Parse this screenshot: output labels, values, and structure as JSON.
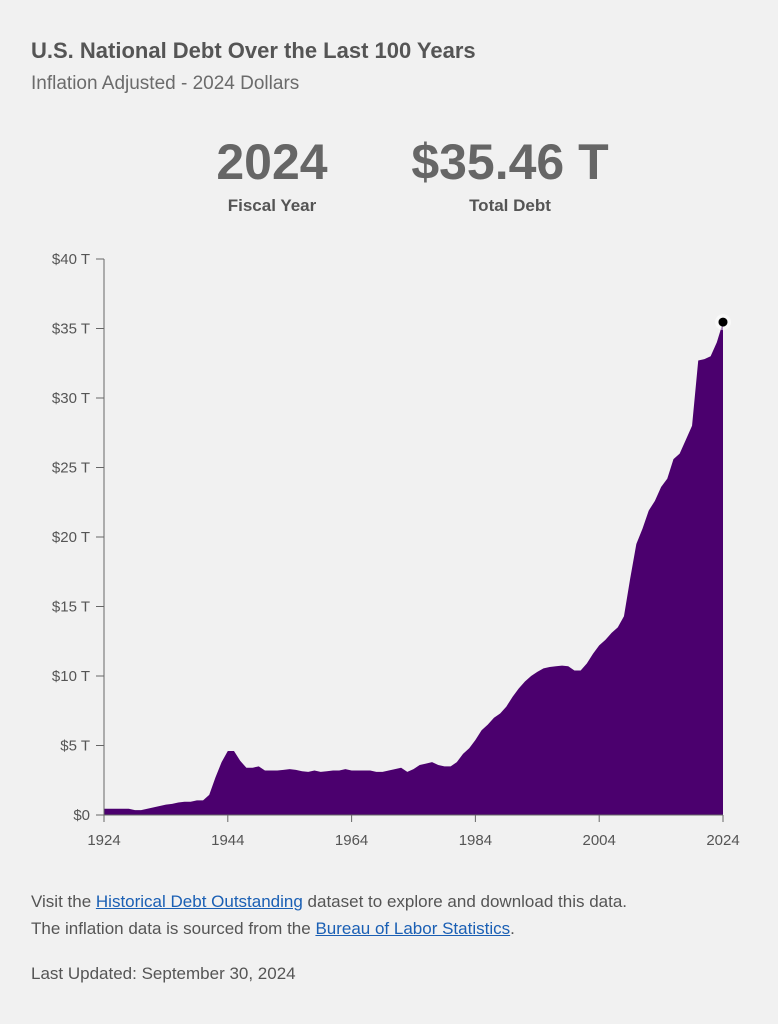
{
  "header": {
    "title": "U.S. National Debt Over the Last 100 Years",
    "subtitle": "Inflation Adjusted - 2024 Dollars"
  },
  "kpis": {
    "year_value": "2024",
    "year_label": "Fiscal Year",
    "debt_value": "$35.46 T",
    "debt_label": "Total Debt"
  },
  "colors": {
    "area": "#4b006e",
    "axis": "#666666",
    "marker": "#000000"
  },
  "chart_data": {
    "type": "area",
    "title": "",
    "xlabel": "",
    "ylabel": "",
    "xlim": [
      1924,
      2024
    ],
    "ylim": [
      0,
      40
    ],
    "x_ticks": [
      1924,
      1944,
      1964,
      1984,
      2004,
      2024
    ],
    "y_ticks": [
      0,
      5,
      10,
      15,
      20,
      25,
      30,
      35,
      40
    ],
    "y_tick_labels": [
      "$0",
      "$5 T",
      "$10 T",
      "$15 T",
      "$20 T",
      "$25 T",
      "$30 T",
      "$35 T",
      "$40 T"
    ],
    "grid": false,
    "unit": "trillions of 2024 dollars",
    "series": [
      {
        "x": [
          1924,
          1925,
          1926,
          1927,
          1928,
          1929,
          1930,
          1931,
          1932,
          1933,
          1934,
          1935,
          1936,
          1937,
          1938,
          1939,
          1940,
          1941,
          1942,
          1943,
          1944,
          1945,
          1946,
          1947,
          1948,
          1949,
          1950,
          1951,
          1952,
          1953,
          1954,
          1955,
          1956,
          1957,
          1958,
          1959,
          1960,
          1961,
          1962,
          1963,
          1964,
          1965,
          1966,
          1967,
          1968,
          1969,
          1970,
          1971,
          1972,
          1973,
          1974,
          1975,
          1976,
          1977,
          1978,
          1979,
          1980,
          1981,
          1982,
          1983,
          1984,
          1985,
          1986,
          1987,
          1988,
          1989,
          1990,
          1991,
          1992,
          1993,
          1994,
          1995,
          1996,
          1997,
          1998,
          1999,
          2000,
          2001,
          2002,
          2003,
          2004,
          2005,
          2006,
          2007,
          2008,
          2009,
          2010,
          2011,
          2012,
          2013,
          2014,
          2015,
          2016,
          2017,
          2018,
          2019,
          2020,
          2021,
          2022,
          2023,
          2024
        ],
        "values": [
          0.45,
          0.45,
          0.45,
          0.45,
          0.45,
          0.35,
          0.35,
          0.45,
          0.55,
          0.65,
          0.75,
          0.8,
          0.9,
          0.95,
          0.95,
          1.05,
          1.05,
          1.45,
          2.7,
          3.8,
          4.6,
          4.6,
          3.9,
          3.4,
          3.4,
          3.5,
          3.2,
          3.2,
          3.2,
          3.25,
          3.3,
          3.25,
          3.15,
          3.1,
          3.2,
          3.1,
          3.15,
          3.2,
          3.2,
          3.3,
          3.2,
          3.2,
          3.2,
          3.2,
          3.1,
          3.1,
          3.2,
          3.3,
          3.4,
          3.1,
          3.3,
          3.6,
          3.7,
          3.8,
          3.6,
          3.5,
          3.5,
          3.8,
          4.4,
          4.8,
          5.4,
          6.1,
          6.5,
          7.0,
          7.3,
          7.8,
          8.5,
          9.1,
          9.6,
          10.0,
          10.3,
          10.55,
          10.65,
          10.7,
          10.75,
          10.7,
          10.4,
          10.4,
          10.9,
          11.6,
          12.2,
          12.6,
          13.1,
          13.5,
          14.3,
          17.0,
          19.5,
          20.6,
          21.9,
          22.6,
          23.6,
          24.2,
          25.6,
          26.0,
          27.0,
          28.0,
          32.7,
          32.8,
          33.0,
          34.0,
          35.46
        ]
      }
    ],
    "highlight": {
      "x": 2024,
      "y": 35.46
    }
  },
  "footer": {
    "line1_before": "Visit the ",
    "line1_link": "Historical Debt Outstanding",
    "line1_after": " dataset to explore and download this data.",
    "line2_before": "The inflation data is sourced from the ",
    "line2_link": "Bureau of Labor Statistics",
    "line2_after": ".",
    "updated": "Last Updated: September 30, 2024"
  }
}
